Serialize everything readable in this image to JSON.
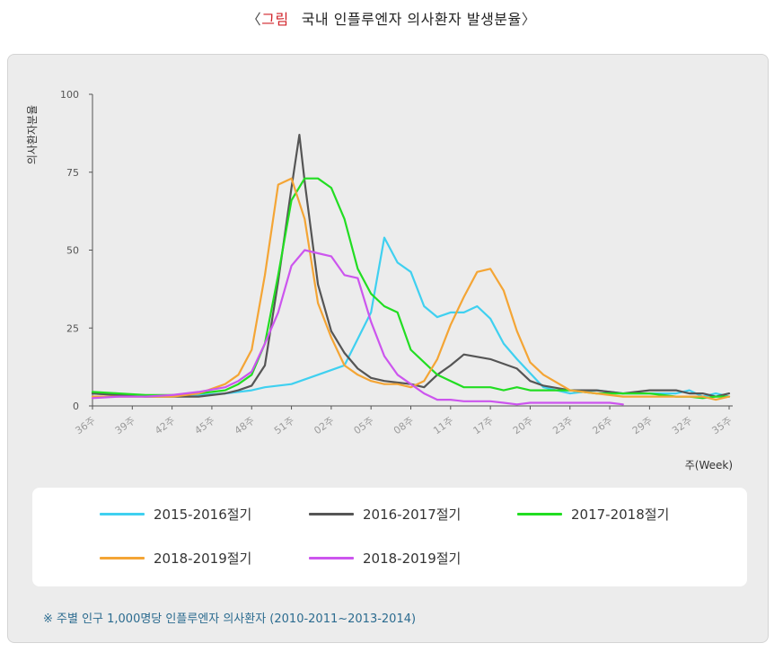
{
  "header": {
    "bracket_open": "〈",
    "tag": "그림",
    "title": "국내 인플루엔자 의사환자 발생분율",
    "bracket_close": "〉"
  },
  "footnote": "※ 주별 인구 1,000명당 인플루엔자 의사환자 (2010-2011~2013-2014)",
  "chart_data": {
    "type": "line",
    "title": "국내 인플루엔자 의사환자 발생분율",
    "ylabel": "의사환자분율",
    "xlabel": "주(Week)",
    "ylim": [
      0,
      100
    ],
    "yticks": [
      0,
      25,
      50,
      75,
      100
    ],
    "grid": false,
    "legend_position": "bottom",
    "x_tick_labels": [
      "36주",
      "39주",
      "42주",
      "45주",
      "48주",
      "51주",
      "02주",
      "05주",
      "08주",
      "11주",
      "17주",
      "20주",
      "23주",
      "26주",
      "29주",
      "32주",
      "35주"
    ],
    "x_tick_positions": [
      0,
      3,
      6,
      9,
      12,
      15,
      18,
      21,
      24,
      27,
      30,
      33,
      36,
      39,
      42,
      45,
      48
    ],
    "series": [
      {
        "name": "2015-2016절기",
        "color": "#3fd0f0",
        "x": [
          0,
          2,
          4,
          6,
          8,
          10,
          12,
          13,
          15,
          17,
          19,
          21,
          22,
          23,
          24,
          25,
          26,
          27,
          28,
          29,
          30,
          31,
          32,
          34,
          36,
          38,
          40,
          42,
          44,
          45,
          46,
          47,
          48
        ],
        "values": [
          4,
          3.5,
          3.2,
          3,
          3.5,
          4,
          5,
          6,
          7,
          10,
          13,
          30,
          54,
          46,
          43,
          32,
          28.5,
          30,
          30,
          32,
          28,
          20,
          15,
          6,
          4,
          5,
          4,
          4,
          4,
          5,
          3,
          4,
          3
        ]
      },
      {
        "name": "2016-2017절기",
        "color": "#555555",
        "x": [
          0,
          2,
          4,
          6,
          8,
          10,
          11,
          12,
          13,
          14,
          15,
          15.6,
          16,
          17,
          18,
          19,
          20,
          21,
          22,
          24,
          25,
          26,
          27,
          28,
          30,
          32,
          33,
          34,
          36,
          38,
          40,
          42,
          44,
          45,
          46,
          47,
          48
        ],
        "values": [
          4,
          3.5,
          3,
          3,
          3,
          4,
          5,
          6.5,
          13,
          40,
          70,
          87,
          72,
          39,
          24,
          17,
          12,
          9,
          8,
          7,
          6,
          10,
          13,
          16.5,
          15,
          12,
          8,
          6.5,
          5,
          5,
          4,
          5,
          5,
          4,
          4,
          3,
          4
        ]
      },
      {
        "name": "2017-2018절기",
        "color": "#22dd22",
        "x": [
          0,
          2,
          4,
          6,
          8,
          10,
          11,
          12,
          13,
          14,
          15,
          16,
          17,
          18,
          19,
          20,
          21,
          22,
          23,
          24,
          25,
          26,
          27,
          28,
          29,
          30,
          31,
          32,
          33,
          34,
          36,
          38,
          40,
          42,
          44,
          45,
          46,
          47,
          48
        ],
        "values": [
          4.5,
          4,
          3.5,
          3.5,
          4,
          5,
          7,
          10,
          20,
          42,
          66,
          73,
          73,
          70,
          60,
          44,
          36,
          32,
          30,
          18,
          14,
          10,
          8,
          6,
          6,
          6,
          5,
          6,
          5,
          5,
          5,
          4,
          4,
          4,
          3,
          3,
          2.5,
          3,
          3
        ]
      },
      {
        "name": "2018-2019절기",
        "color": "#f4a535",
        "x": [
          0,
          2,
          4,
          6,
          8,
          10,
          11,
          12,
          13,
          14,
          15,
          16,
          17,
          18,
          19,
          20,
          21,
          22,
          23,
          24,
          25,
          26,
          27,
          28,
          29,
          30,
          31,
          32,
          33,
          34,
          36,
          38,
          40,
          42,
          44,
          46,
          47,
          48
        ],
        "values": [
          3,
          3,
          3,
          3,
          4,
          7,
          10,
          18,
          42,
          71,
          73,
          60,
          33,
          22,
          13,
          10,
          8,
          7,
          7,
          6,
          8,
          15,
          26,
          35,
          43,
          44,
          37,
          24,
          14,
          10,
          5,
          4,
          3,
          3,
          3,
          3,
          2,
          3
        ]
      },
      {
        "name": "2018-2019절기",
        "color": "#cc55ee",
        "x": [
          0,
          2,
          4,
          6,
          8,
          10,
          11,
          12,
          13,
          14,
          15,
          16,
          17,
          18,
          19,
          20,
          21,
          22,
          23,
          24,
          25,
          26,
          27,
          28,
          29,
          30,
          31,
          32,
          33,
          34,
          36,
          38,
          39,
          40
        ],
        "values": [
          2.5,
          3,
          3,
          3.5,
          4.5,
          6,
          8,
          11,
          20,
          30,
          45,
          50,
          49,
          48,
          42,
          41,
          27,
          16,
          10,
          7,
          4,
          2,
          2,
          1.5,
          1.5,
          1.5,
          1,
          0.5,
          1,
          1,
          1,
          1,
          1,
          0.5
        ]
      }
    ]
  }
}
